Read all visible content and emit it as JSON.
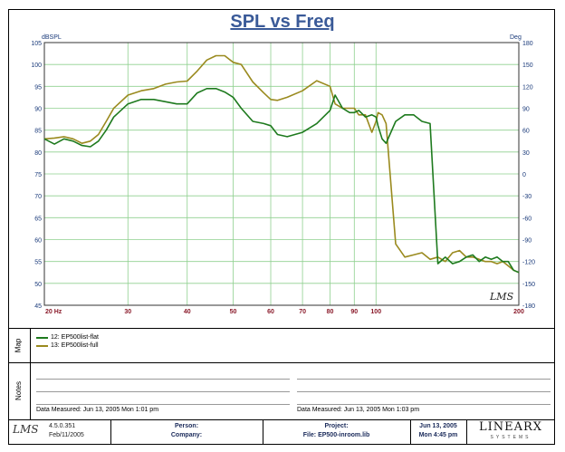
{
  "chart_data": {
    "type": "line",
    "title": "SPL vs Freq",
    "ylabel_left": "dBSPL",
    "ylabel_right": "Deg",
    "ylim": [
      45,
      105
    ],
    "ylim_right": [
      -180,
      180
    ],
    "xlim": [
      20,
      200
    ],
    "xscale": "log",
    "grid": true,
    "xticks": [
      {
        "value": 20,
        "label": "20 Hz"
      },
      {
        "value": 30,
        "label": "30"
      },
      {
        "value": 40,
        "label": "40"
      },
      {
        "value": 50,
        "label": "50"
      },
      {
        "value": 60,
        "label": "60"
      },
      {
        "value": 70,
        "label": "70"
      },
      {
        "value": 80,
        "label": "80"
      },
      {
        "value": 90,
        "label": "90"
      },
      {
        "value": 100,
        "label": "100"
      },
      {
        "value": 200,
        "label": "200"
      }
    ],
    "yticks_left": [
      "105",
      "100",
      "95",
      "90",
      "85",
      "80",
      "75",
      "70",
      "65",
      "60",
      "55",
      "50",
      "45"
    ],
    "yticks_right": [
      "180",
      "150",
      "120",
      "90",
      "60",
      "30",
      "0",
      "-30",
      "-60",
      "-90",
      "-120",
      "-150",
      "-180"
    ],
    "series": [
      {
        "name": "12: EP500list-flat",
        "color": "#1e7a1e",
        "x": [
          20,
          21,
          22,
          23,
          24,
          25,
          26,
          27,
          28,
          30,
          32,
          34,
          36,
          38,
          40,
          42,
          44,
          46,
          48,
          50,
          52,
          55,
          58,
          60,
          62,
          65,
          70,
          75,
          80,
          82,
          85,
          88,
          90,
          92,
          95,
          98,
          100,
          101,
          103,
          105,
          110,
          115,
          120,
          125,
          130,
          135,
          140,
          145,
          150,
          155,
          160,
          165,
          170,
          175,
          180,
          185,
          190,
          195,
          200
        ],
        "values": [
          83,
          81.8,
          83,
          82.5,
          81.5,
          81.2,
          82.5,
          85,
          88,
          91,
          92,
          92,
          91.5,
          91,
          91,
          93.5,
          94.5,
          94.5,
          93.7,
          92.5,
          90,
          87,
          86.5,
          86,
          84,
          83.5,
          84.5,
          86.5,
          89.5,
          93,
          90,
          89,
          89,
          89.5,
          88,
          88.5,
          88,
          86,
          83,
          82,
          87,
          88.5,
          88.5,
          87,
          86.5,
          54.5,
          56,
          54.5,
          55,
          56,
          56.5,
          55,
          56,
          55.5,
          56,
          55,
          55,
          53,
          52.5
        ]
      },
      {
        "name": "13: EP500list-full",
        "color": "#9a8a1e",
        "x": [
          20,
          21,
          22,
          23,
          24,
          25,
          26,
          27,
          28,
          30,
          32,
          34,
          36,
          38,
          40,
          42,
          44,
          46,
          48,
          50,
          52,
          55,
          58,
          60,
          62,
          65,
          70,
          75,
          80,
          82,
          85,
          88,
          90,
          92,
          95,
          98,
          100,
          101,
          103,
          105,
          110,
          115,
          120,
          125,
          130,
          135,
          140,
          145,
          150,
          155,
          160,
          165,
          170,
          175,
          180,
          185,
          190,
          195,
          200
        ],
        "values": [
          83,
          83.2,
          83.5,
          83,
          82,
          82.5,
          84,
          87,
          90,
          93,
          94,
          94.5,
          95.5,
          96,
          96.2,
          98.5,
          101,
          102,
          102,
          100.5,
          100,
          96,
          93.5,
          92,
          91.8,
          92.5,
          94,
          96.3,
          95,
          91,
          90,
          90,
          90,
          88.5,
          88.5,
          84.5,
          87,
          89,
          88.5,
          86.5,
          59,
          56,
          56.5,
          57,
          55.5,
          56,
          55,
          57,
          57.5,
          56,
          56,
          55.5,
          55,
          55,
          54.5,
          55,
          54,
          53,
          52.5
        ]
      }
    ]
  },
  "legend_panel": {
    "label": "Map",
    "items": [
      {
        "label": "12: EP500list-flat",
        "color": "#1e7a1e"
      },
      {
        "label": "13: EP500list-full",
        "color": "#9a8a1e"
      }
    ]
  },
  "notes_panel": {
    "label": "Notes",
    "left_measured": "Data Measured: Jun 13, 2005 Mon 1:01 pm",
    "right_measured": "Data Measured: Jun 13, 2005 Mon 1:03 pm"
  },
  "footer": {
    "version": "4.5.0.351",
    "version_date": "Feb/11/2005",
    "person_label": "Person:",
    "company_label": "Company:",
    "project_label": "Project:",
    "file_label": "File: EP500-inroom.lib",
    "date": "Jun 13, 2005",
    "time": "Mon 4:45 pm",
    "brand": "LINEARX",
    "brand_sub": "SYSTEMS"
  },
  "watermark": "LMS"
}
